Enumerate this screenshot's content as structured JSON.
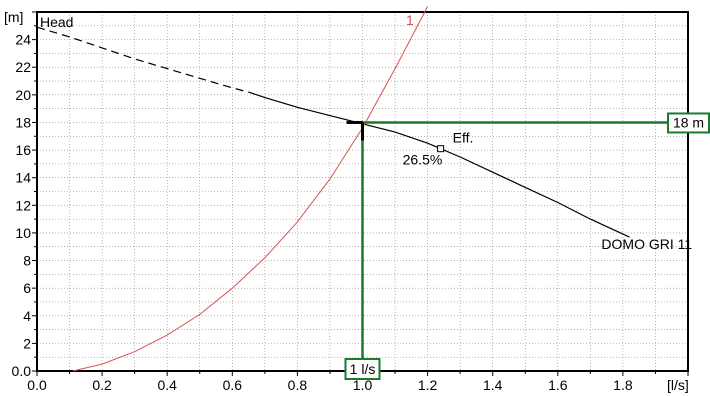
{
  "chart_data": {
    "type": "line",
    "x_unit_label": "[l/s]",
    "y_unit_label": "[m]",
    "xlim": [
      0.0,
      2.0
    ],
    "ylim": [
      0.0,
      26.0
    ],
    "x_ticks": [
      "0.0",
      "0.2",
      "0.4",
      "0.6",
      "0.8",
      "1.0",
      "1.2",
      "1.4",
      "1.6",
      "1.8"
    ],
    "y_ticks": [
      "0.0",
      "2",
      "4",
      "6",
      "8",
      "10",
      "12",
      "14",
      "16",
      "18",
      "20",
      "22",
      "24"
    ],
    "grid": true,
    "series": [
      {
        "name": "Head",
        "color": "#000000",
        "dashed_x_range": [
          0.0,
          0.65
        ],
        "points": [
          [
            0.0,
            24.9
          ],
          [
            0.1,
            24.2
          ],
          [
            0.2,
            23.4
          ],
          [
            0.3,
            22.6
          ],
          [
            0.4,
            21.9
          ],
          [
            0.5,
            21.2
          ],
          [
            0.6,
            20.5
          ],
          [
            0.65,
            20.2
          ],
          [
            0.7,
            19.8
          ],
          [
            0.8,
            19.1
          ],
          [
            0.9,
            18.5
          ],
          [
            1.0,
            17.9
          ],
          [
            1.1,
            17.3
          ],
          [
            1.2,
            16.5
          ],
          [
            1.3,
            15.5
          ],
          [
            1.4,
            14.4
          ],
          [
            1.5,
            13.3
          ],
          [
            1.6,
            12.2
          ],
          [
            1.7,
            11.0
          ],
          [
            1.82,
            9.7
          ]
        ]
      },
      {
        "name": "1",
        "color": "#d9534f",
        "points": [
          [
            0.11,
            0.0
          ],
          [
            0.2,
            0.5
          ],
          [
            0.3,
            1.4
          ],
          [
            0.4,
            2.6
          ],
          [
            0.5,
            4.1
          ],
          [
            0.6,
            6.0
          ],
          [
            0.7,
            8.2
          ],
          [
            0.8,
            10.8
          ],
          [
            0.9,
            13.9
          ],
          [
            1.0,
            17.6
          ],
          [
            1.1,
            21.9
          ],
          [
            1.2,
            26.6
          ]
        ]
      }
    ],
    "operating_point": {
      "x": 1.0,
      "y": 18.0,
      "x_label": "1 l/s",
      "y_label": "18 m",
      "color": "#1a7a2e"
    },
    "efficiency_marker": {
      "x": 1.24,
      "y": 16.1,
      "label": "Eff.",
      "value": "26.5%"
    },
    "curve_label": "DOMO GRI 11"
  }
}
